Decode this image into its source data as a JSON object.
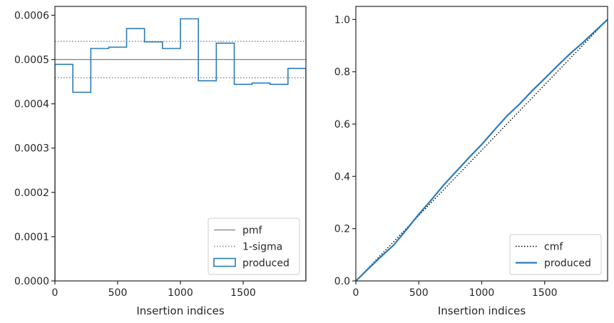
{
  "chart_data": [
    {
      "type": "line",
      "subtype": "step-histogram",
      "title": "",
      "xlabel": "Insertion indices",
      "ylabel": "",
      "xlim": [
        0,
        2000
      ],
      "ylim": [
        0,
        0.00062
      ],
      "xticks": [
        0,
        500,
        1000,
        1500
      ],
      "xtick_labels": [
        "0",
        "500",
        "1000",
        "1500"
      ],
      "yticks": [
        0,
        0.0001,
        0.0002,
        0.0003,
        0.0004,
        0.0005,
        0.0006
      ],
      "ytick_labels": [
        "0.0000",
        "0.0001",
        "0.0002",
        "0.0003",
        "0.0004",
        "0.0005",
        "0.0006"
      ],
      "grid": false,
      "legend_position": "lower-right",
      "bin_edges": [
        0,
        143,
        286,
        429,
        571,
        714,
        857,
        1000,
        1143,
        1286,
        1429,
        1571,
        1714,
        1857,
        2000
      ],
      "series": [
        {
          "name": "pmf",
          "style": "solid",
          "color": "#808080",
          "y": 0.0005
        },
        {
          "name": "1-sigma",
          "style": "dotted",
          "color": "#808080",
          "y_values": [
            0.000459,
            0.000541
          ]
        },
        {
          "name": "produced",
          "style": "step",
          "color": "#2b7bba",
          "values": [
            0.000489,
            0.000426,
            0.000525,
            0.000528,
            0.00057,
            0.00054,
            0.000525,
            0.000592,
            0.000452,
            0.000537,
            0.000444,
            0.000447,
            0.000444,
            0.00048
          ]
        }
      ]
    },
    {
      "type": "line",
      "title": "",
      "xlabel": "Insertion indices",
      "ylabel": "",
      "xlim": [
        0,
        2000
      ],
      "ylim": [
        0,
        1.05
      ],
      "xticks": [
        0,
        500,
        1000,
        1500
      ],
      "xtick_labels": [
        "0",
        "500",
        "1000",
        "1500"
      ],
      "yticks": [
        0,
        0.2,
        0.4,
        0.6,
        0.8,
        1.0
      ],
      "ytick_labels": [
        "0.0",
        "0.2",
        "0.4",
        "0.6",
        "0.8",
        "1.0"
      ],
      "grid": false,
      "legend_position": "lower-right",
      "series": [
        {
          "name": "cmf",
          "style": "dotted",
          "color": "#000000",
          "x": [
            0,
            2000
          ],
          "y": [
            0,
            1.0
          ]
        },
        {
          "name": "produced",
          "style": "solid",
          "color": "#2b7bba",
          "x": [
            0,
            100,
            200,
            300,
            400,
            500,
            600,
            700,
            800,
            900,
            1000,
            1100,
            1200,
            1300,
            1400,
            1500,
            1600,
            1700,
            1800,
            1900,
            2000
          ],
          "y": [
            0,
            0.047,
            0.093,
            0.137,
            0.195,
            0.255,
            0.31,
            0.368,
            0.42,
            0.472,
            0.522,
            0.577,
            0.631,
            0.676,
            0.727,
            0.774,
            0.822,
            0.868,
            0.91,
            0.955,
            1.0
          ]
        }
      ]
    }
  ]
}
